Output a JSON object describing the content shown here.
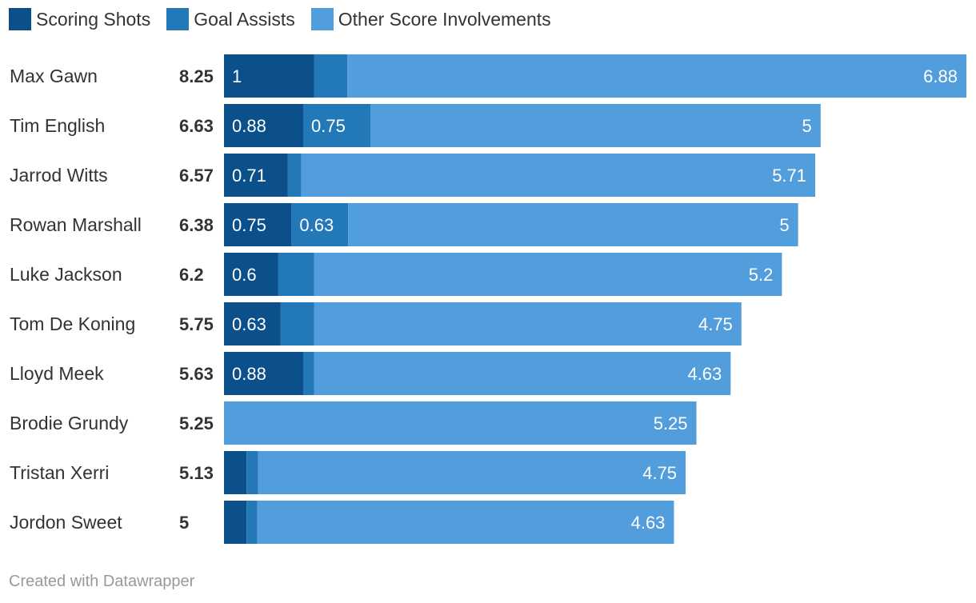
{
  "chart_data": {
    "type": "bar",
    "orientation": "horizontal",
    "stacked": true,
    "legend": [
      {
        "name": "Scoring Shots",
        "color": "#0b4f8b"
      },
      {
        "name": "Goal Assists",
        "color": "#2378b8"
      },
      {
        "name": "Other Score Involvements",
        "color": "#529ddc"
      }
    ],
    "categories": [
      "Max Gawn",
      "Tim English",
      "Jarrod Witts",
      "Rowan Marshall",
      "Luke Jackson",
      "Tom De Koning",
      "Lloyd Meek",
      "Brodie Grundy",
      "Tristan Xerri",
      "Jordon Sweet"
    ],
    "totals": [
      "8.25",
      "6.63",
      "6.57",
      "6.38",
      "6.2",
      "5.75",
      "5.63",
      "5.25",
      "5.13",
      "5"
    ],
    "series": [
      {
        "name": "Scoring Shots",
        "values": [
          1,
          0.88,
          0.71,
          0.75,
          0.6,
          0.63,
          0.88,
          0,
          0.25,
          0.25
        ],
        "labels": [
          "1",
          "0.88",
          "0.71",
          "0.75",
          "0.6",
          "0.63",
          "0.88",
          "",
          "",
          ""
        ]
      },
      {
        "name": "Goal Assists",
        "values": [
          0.37,
          0.75,
          0.15,
          0.63,
          0.4,
          0.37,
          0.12,
          0,
          0.13,
          0.12
        ],
        "labels": [
          "",
          "0.75",
          "",
          "0.63",
          "",
          "",
          "",
          "",
          "",
          ""
        ]
      },
      {
        "name": "Other Score Involvements",
        "values": [
          6.88,
          5,
          5.71,
          5,
          5.2,
          4.75,
          4.63,
          5.25,
          4.75,
          4.63
        ],
        "labels": [
          "6.88",
          "5",
          "5.71",
          "5",
          "5.2",
          "4.75",
          "4.63",
          "5.25",
          "4.75",
          "4.63"
        ]
      }
    ],
    "xlim": [
      0,
      8.25
    ],
    "title": "",
    "xlabel": "",
    "ylabel": "",
    "grid": false,
    "legend_position": "top-left"
  },
  "footer": {
    "credit": "Created with Datawrapper"
  }
}
